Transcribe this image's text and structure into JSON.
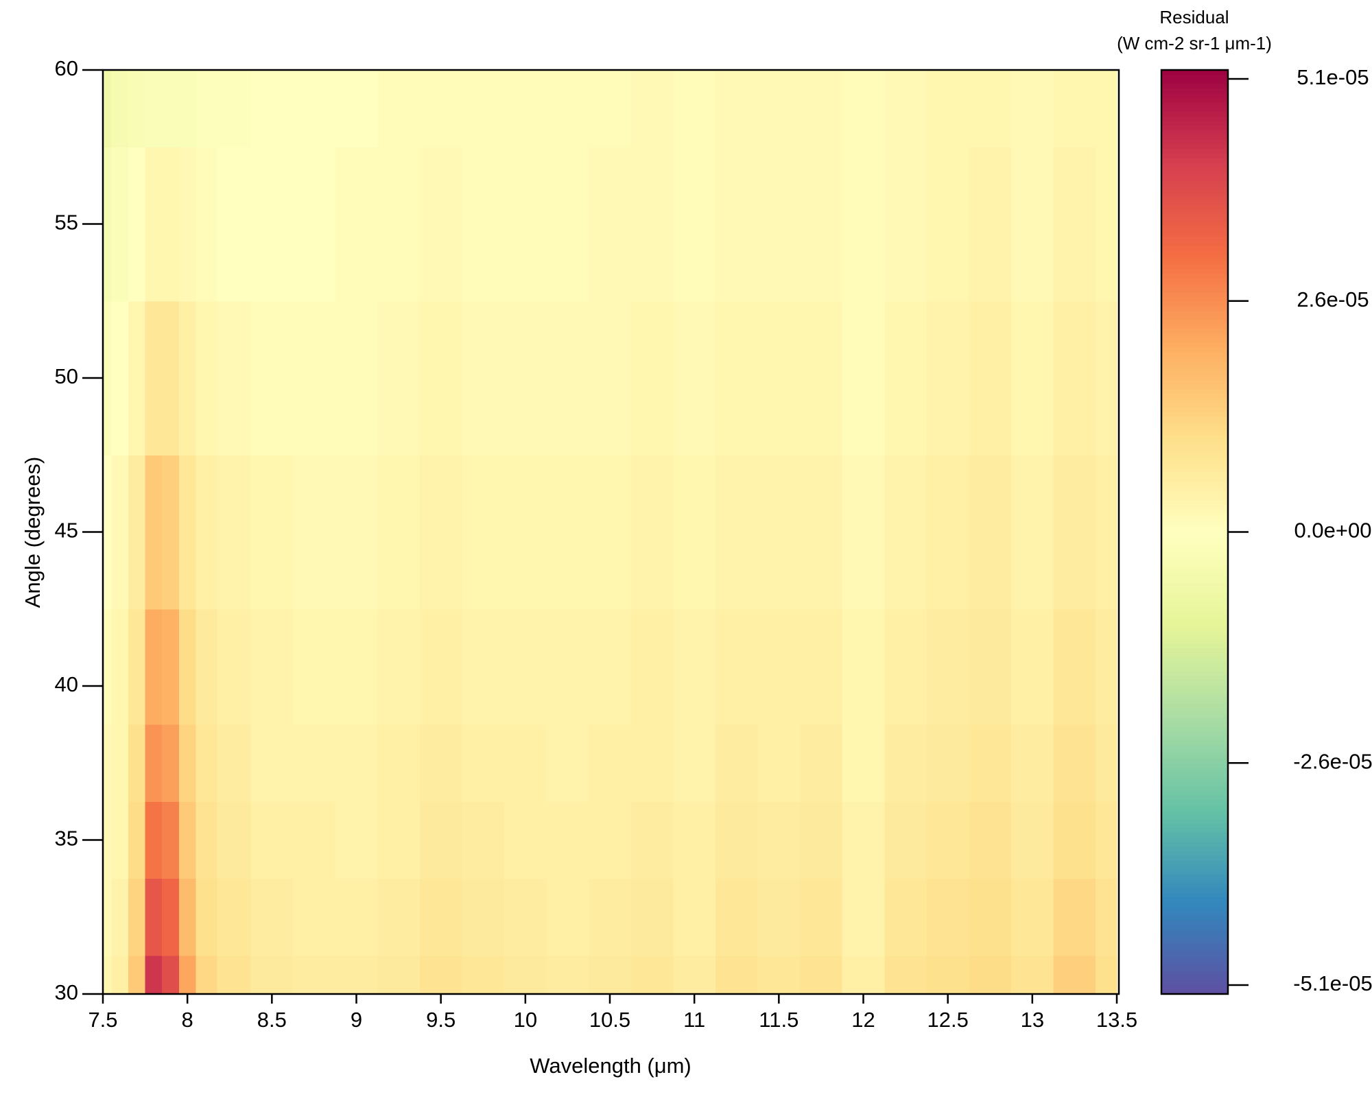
{
  "chart_data": {
    "type": "heatmap",
    "x_label": "Wavelength (μm)",
    "y_label": "Angle (degrees)",
    "colorbar_title": "Residual",
    "colorbar_units": "(W cm-2 sr-1  μm-1)",
    "x": [
      7.5,
      7.6,
      7.7,
      7.8,
      7.9,
      8.0,
      8.1,
      8.25,
      8.5,
      8.75,
      9,
      9.25,
      9.5,
      9.75,
      10,
      10.25,
      10.5,
      10.75,
      11,
      11.25,
      11.5,
      11.75,
      12,
      12.25,
      12.5,
      12.75,
      13,
      13.25,
      13.5
    ],
    "y": [
      30,
      32.5,
      35,
      37.5,
      40,
      45,
      50,
      55,
      60
    ],
    "z": [
      [
        3e-06,
        5e-06,
        1.5e-05,
        4.3e-05,
        3.8e-05,
        2.2e-05,
        1.2e-05,
        9e-06,
        7e-06,
        6e-06,
        6e-06,
        7e-06,
        9e-06,
        8e-06,
        7e-06,
        6e-06,
        7e-06,
        8e-06,
        6e-06,
        9e-06,
        8e-06,
        9e-06,
        5e-06,
        9e-06,
        1e-05,
        1.1e-05,
        9e-06,
        1.4e-05,
        1e-05
      ],
      [
        2e-06,
        4e-06,
        1.3e-05,
        3.6e-05,
        3.3e-05,
        1.8e-05,
        1e-05,
        8e-06,
        6e-06,
        5e-06,
        5e-06,
        6e-06,
        8e-06,
        7e-06,
        6e-06,
        5e-06,
        6e-06,
        7e-06,
        5e-06,
        8e-06,
        7e-06,
        8e-06,
        4e-06,
        8e-06,
        9e-06,
        1e-05,
        8e-06,
        1.2e-05,
        9e-06
      ],
      [
        2e-06,
        3e-06,
        1.1e-05,
        3e-05,
        2.8e-05,
        1.5e-05,
        9e-06,
        7e-06,
        5e-06,
        5e-06,
        4e-06,
        5e-06,
        7e-06,
        6e-06,
        5e-06,
        5e-06,
        5e-06,
        6e-06,
        5e-06,
        7e-06,
        6e-06,
        7e-06,
        4e-06,
        7e-06,
        8e-06,
        9e-06,
        7e-06,
        1e-05,
        8e-06
      ],
      [
        2e-06,
        3e-06,
        1e-05,
        2.5e-05,
        2.3e-05,
        1.3e-05,
        8e-06,
        6e-06,
        4e-06,
        4e-06,
        4e-06,
        5e-06,
        6e-06,
        5e-06,
        5e-06,
        4e-06,
        5e-06,
        5e-06,
        4e-06,
        6e-06,
        5e-06,
        6e-06,
        3e-06,
        6e-06,
        7e-06,
        8e-06,
        6e-06,
        9e-06,
        7e-06
      ],
      [
        1e-06,
        3e-06,
        8e-06,
        2.1e-05,
        2e-05,
        1.1e-05,
        7e-06,
        5e-06,
        4e-06,
        3e-06,
        3e-06,
        4e-06,
        5e-06,
        4e-06,
        4e-06,
        4e-06,
        4e-06,
        5e-06,
        4e-06,
        5e-06,
        5e-06,
        5e-06,
        3e-06,
        5e-06,
        6e-06,
        7e-06,
        5e-06,
        8e-06,
        6e-06
      ],
      [
        0,
        2e-06,
        6e-06,
        1.5e-05,
        1.4e-05,
        8e-06,
        5e-06,
        4e-06,
        3e-06,
        2e-06,
        2e-06,
        3e-06,
        4e-06,
        3e-06,
        3e-06,
        3e-06,
        3e-06,
        4e-06,
        3e-06,
        4e-06,
        4e-06,
        4e-06,
        2e-06,
        4e-06,
        5e-06,
        6e-06,
        4e-06,
        6e-06,
        5e-06
      ],
      [
        -2e-06,
        0,
        3e-06,
        8e-06,
        8e-06,
        5e-06,
        3e-06,
        2e-06,
        1e-06,
        1e-06,
        1e-06,
        2e-06,
        3e-06,
        2e-06,
        2e-06,
        2e-06,
        2e-06,
        3e-06,
        2e-06,
        3e-06,
        3e-06,
        3e-06,
        1e-06,
        3e-06,
        4e-06,
        5e-06,
        3e-06,
        5e-06,
        4e-06
      ],
      [
        -4e-06,
        -2e-06,
        0,
        3e-06,
        3e-06,
        2e-06,
        1e-06,
        0,
        0,
        0,
        1e-06,
        1e-06,
        2e-06,
        1e-06,
        1e-06,
        1e-06,
        2e-06,
        2e-06,
        1e-06,
        2e-06,
        2e-06,
        2e-06,
        1e-06,
        2e-06,
        3e-06,
        4e-06,
        2e-06,
        4e-06,
        3e-06
      ],
      [
        -6e-06,
        -4e-06,
        -3e-06,
        -2e-06,
        -2e-06,
        -2e-06,
        -1e-06,
        -1e-06,
        0,
        0,
        0,
        1e-06,
        1e-06,
        1e-06,
        1e-06,
        1e-06,
        1e-06,
        2e-06,
        1e-06,
        2e-06,
        2e-06,
        2e-06,
        1e-06,
        2e-06,
        3e-06,
        3e-06,
        2e-06,
        3e-06,
        3e-06
      ]
    ],
    "xlim": [
      7.5,
      13.5
    ],
    "ylim": [
      30,
      60
    ],
    "xticks": [
      7.5,
      8,
      8.5,
      9,
      9.5,
      10,
      10.5,
      11,
      11.5,
      12,
      12.5,
      13,
      13.5
    ],
    "yticks": [
      30,
      35,
      40,
      45,
      50,
      55,
      60
    ],
    "zlim": [
      -5.2e-05,
      5.2e-05
    ],
    "zticks": [
      {
        "value": 5.1e-05,
        "label": "5.1e-05"
      },
      {
        "value": 2.6e-05,
        "label": "2.6e-05"
      },
      {
        "value": 0,
        "label": "0.0e+00"
      },
      {
        "value": -2.6e-05,
        "label": "-2.6e-05"
      },
      {
        "value": -5.1e-05,
        "label": "-5.1e-05"
      }
    ],
    "colorscale": [
      "#5e4fa2",
      "#3288bd",
      "#66c2a5",
      "#abdda4",
      "#e6f598",
      "#ffffbf",
      "#fee08b",
      "#fdae61",
      "#f46d43",
      "#d53e4f",
      "#9e0142"
    ]
  }
}
